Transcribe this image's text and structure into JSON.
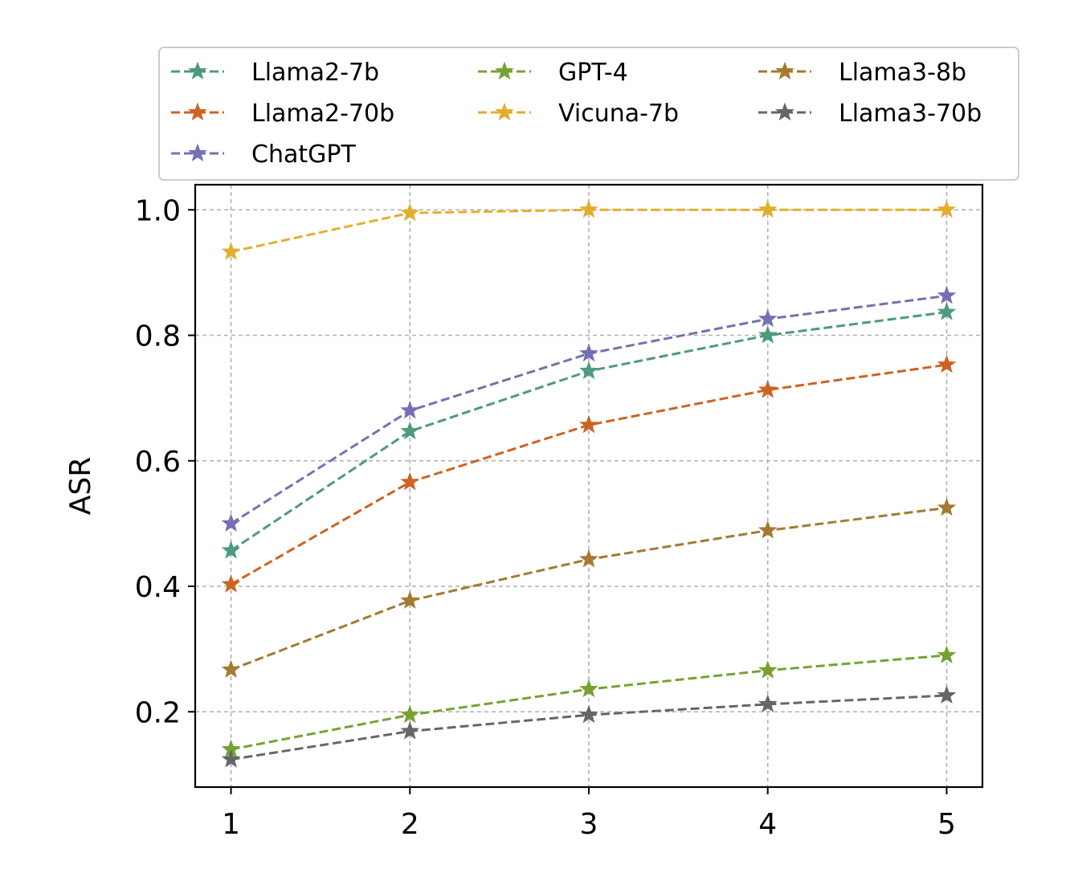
{
  "chart_data": {
    "type": "line",
    "title": "",
    "xlabel": "",
    "ylabel": "ASR",
    "x": [
      1,
      2,
      3,
      4,
      5
    ],
    "xticks": [
      "1",
      "2",
      "3",
      "4",
      "5"
    ],
    "yticks": [
      "0.2",
      "0.4",
      "0.6",
      "0.8",
      "1.0"
    ],
    "ytick_values": [
      0.2,
      0.4,
      0.6,
      0.8,
      1.0
    ],
    "xlim": [
      0.8,
      5.2
    ],
    "ylim": [
      0.08,
      1.04
    ],
    "grid": true,
    "legend_position": "top, above plot, 3 columns",
    "series": [
      {
        "name": "Llama2-7b",
        "color": "#4e9a7c",
        "values": [
          0.457,
          0.647,
          0.743,
          0.8,
          0.837
        ]
      },
      {
        "name": "Llama2-70b",
        "color": "#cc6324",
        "values": [
          0.403,
          0.566,
          0.657,
          0.713,
          0.753
        ]
      },
      {
        "name": "ChatGPT",
        "color": "#7570b3",
        "values": [
          0.5,
          0.68,
          0.771,
          0.826,
          0.863
        ]
      },
      {
        "name": "GPT-4",
        "color": "#76a232",
        "values": [
          0.14,
          0.195,
          0.236,
          0.266,
          0.29
        ]
      },
      {
        "name": "Vicuna-7b",
        "color": "#e3ae2e",
        "values": [
          0.933,
          0.995,
          1.0,
          1.0,
          1.0
        ]
      },
      {
        "name": "Llama3-8b",
        "color": "#a47a2f",
        "values": [
          0.267,
          0.377,
          0.443,
          0.489,
          0.525
        ]
      },
      {
        "name": "Llama3-70b",
        "color": "#666666",
        "values": [
          0.124,
          0.169,
          0.195,
          0.212,
          0.226
        ]
      }
    ]
  }
}
